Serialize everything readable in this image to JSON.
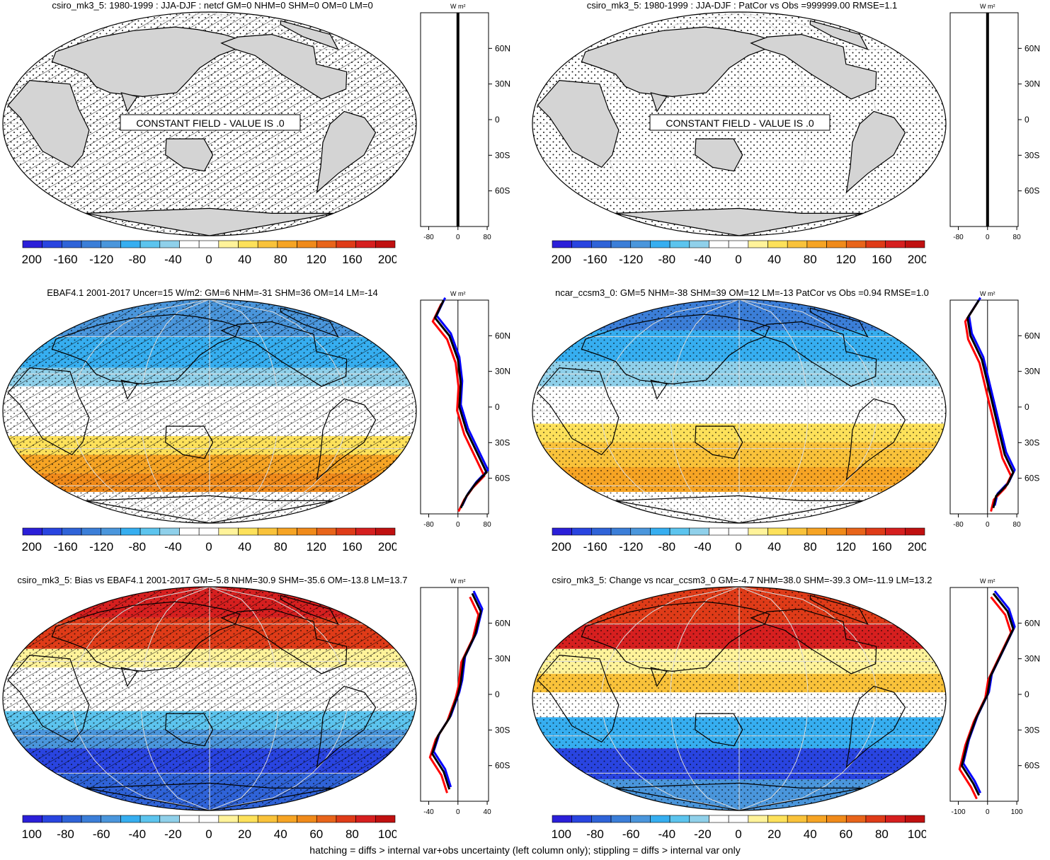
{
  "colors": {
    "scale": [
      "#2b1fd9",
      "#2944e0",
      "#2f63d8",
      "#3b7ed8",
      "#4a96dc",
      "#36aef0",
      "#5cc4ee",
      "#8fd0ea",
      "#ffffff",
      "#ffffff",
      "#fff39a",
      "#fde15a",
      "#f9c23a",
      "#f6a424",
      "#f08a1a",
      "#e8641a",
      "#df3b18",
      "#d61f1f",
      "#c01010"
    ],
    "land": "#d4d4d4",
    "obs_line": "#0000ff",
    "model_line": "#ff0000",
    "mean_line": "#000000"
  },
  "colorbar_ticks": {
    "abs": [
      "-200",
      "-160",
      "-120",
      "-80",
      "-40",
      "0",
      "40",
      "80",
      "120",
      "160",
      "200"
    ],
    "diff": [
      "-100",
      "-80",
      "-60",
      "-40",
      "-20",
      "0",
      "20",
      "40",
      "60",
      "80",
      "100"
    ]
  },
  "profile": {
    "unit": "W m²",
    "lat_labels": [
      "60N",
      "30N",
      "0",
      "30S",
      "60S"
    ]
  },
  "panels": [
    {
      "title": "csiro_mk3_5: 1980-1999 : JJA-DJF : netcf GM=0 NHM=0 SHM=0 OM=0 LM=0",
      "notice": "CONSTANT FIELD - VALUE IS .0",
      "x_ticks": [
        "-80",
        "0",
        "80"
      ],
      "colorbar": "abs"
    },
    {
      "title": "csiro_mk3_5: 1980-1999 : JJA-DJF : PatCor vs Obs =999999.00 RMSE=1.1",
      "notice": "CONSTANT FIELD - VALUE IS .0",
      "x_ticks": [
        "-80",
        "0",
        "80"
      ],
      "colorbar": "abs"
    },
    {
      "title": "EBAF4.1 2001-2017 Uncer=15 W/m2: GM=6 NHM=-31 SHM=36 OM=14 LM=-14",
      "notice": "",
      "x_ticks": [
        "-80",
        "0",
        "80"
      ],
      "colorbar": "abs"
    },
    {
      "title": "ncar_ccsm3_0: GM=5 NHM=-38 SHM=39 OM=12 LM=-13 PatCor vs Obs =0.94 RMSE=1.0",
      "notice": "",
      "x_ticks": [
        "-80",
        "0",
        "80"
      ],
      "colorbar": "abs"
    },
    {
      "title": "csiro_mk3_5: Bias vs EBAF4.1 2001-2017 GM=-5.8 NHM=30.9 SHM=-35.6 OM=-13.8 LM=13.7",
      "notice": "",
      "x_ticks": [
        "-40",
        "0",
        "40"
      ],
      "colorbar": "diff"
    },
    {
      "title": "csiro_mk3_5: Change vs ncar_ccsm3_0 GM=-4.7 NHM=38.0 SHM=-39.3 OM=-11.9 LM=13.2",
      "notice": "",
      "x_ticks": [
        "-100",
        "0",
        "100"
      ],
      "colorbar": "diff"
    }
  ],
  "caption": "hatching = diffs > internal var+obs uncertainty (left column only); stippling = diffs > internal var only"
}
